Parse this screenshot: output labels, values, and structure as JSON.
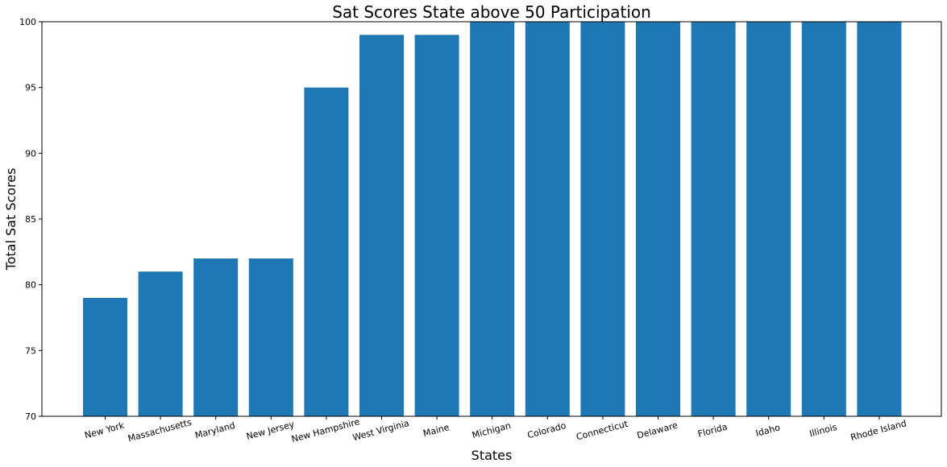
{
  "chart_data": {
    "type": "bar",
    "title": "Sat Scores State above 50 Participation",
    "xlabel": "States",
    "ylabel": "Total Sat Scores",
    "categories": [
      "New York",
      "Massachusetts",
      "Maryland",
      "New Jersey",
      "New Hampshire",
      "West Virginia",
      "Maine",
      "Michigan",
      "Colorado",
      "Connecticut",
      "Delaware",
      "Florida",
      "Idaho",
      "Illinois",
      "Rhode Island"
    ],
    "values": [
      79,
      81,
      82,
      82,
      95,
      99,
      99,
      100,
      100,
      100,
      100,
      100,
      100,
      100,
      100
    ],
    "ylim": [
      70,
      100
    ],
    "yticks": [
      70,
      75,
      80,
      85,
      90,
      95,
      100
    ],
    "bar_color": "#1f77b4",
    "grid": false,
    "legend": "none"
  }
}
